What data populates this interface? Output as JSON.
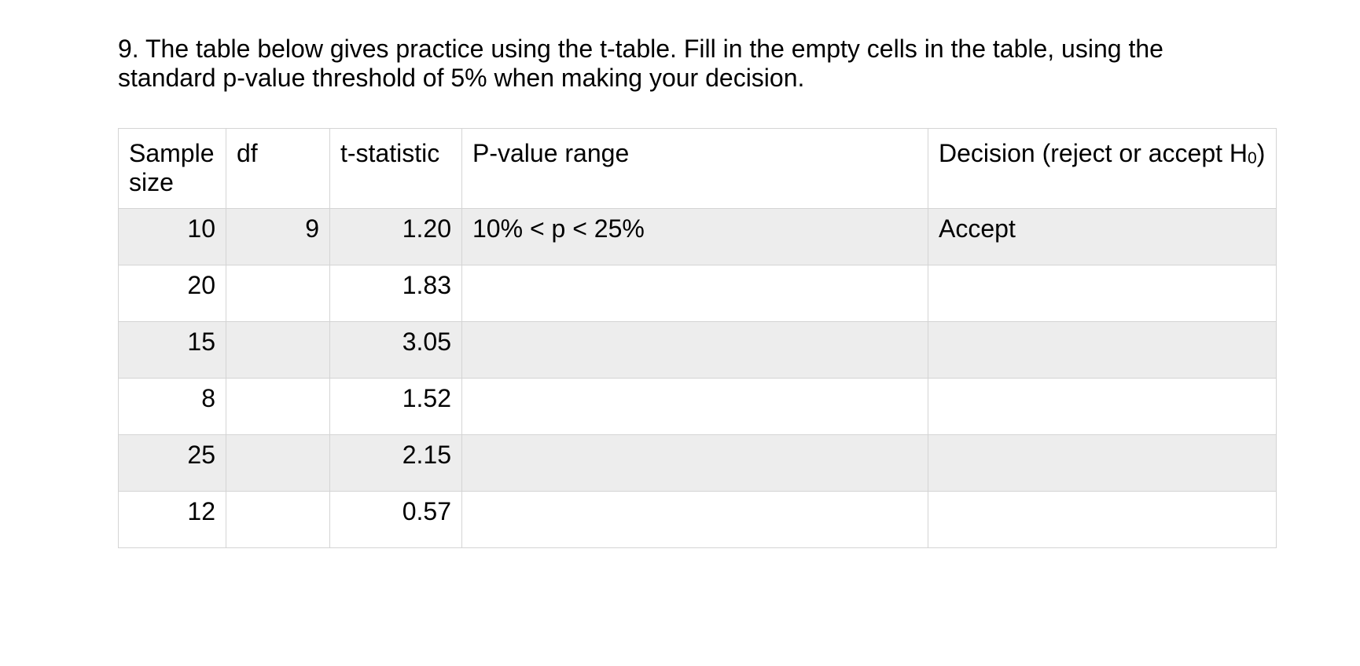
{
  "question": {
    "lines": [
      "9. The table below gives practice using the t-table. Fill in the empty cells in the table, using the",
      "standard p-value threshold of 5% when making your decision."
    ]
  },
  "table": {
    "headers": {
      "sample_size": "Sample size",
      "df": "df",
      "t_statistic": "t-statistic",
      "p_value_range": "P-value range",
      "decision_prefix": "Decision (reject or accept H",
      "decision_sub": "0",
      "decision_suffix": ")"
    },
    "rows": [
      {
        "sample_size": "10",
        "df": "9",
        "t_statistic": "1.20",
        "p_value_range": "10% < p < 25%",
        "decision": "Accept"
      },
      {
        "sample_size": "20",
        "df": "",
        "t_statistic": "1.83",
        "p_value_range": "",
        "decision": ""
      },
      {
        "sample_size": "15",
        "df": "",
        "t_statistic": "3.05",
        "p_value_range": "",
        "decision": ""
      },
      {
        "sample_size": "8",
        "df": "",
        "t_statistic": "1.52",
        "p_value_range": "",
        "decision": ""
      },
      {
        "sample_size": "25",
        "df": "",
        "t_statistic": "2.15",
        "p_value_range": "",
        "decision": ""
      },
      {
        "sample_size": "12",
        "df": "",
        "t_statistic": "0.57",
        "p_value_range": "",
        "decision": ""
      }
    ]
  },
  "colors": {
    "background": "#ffffff",
    "text": "#000000",
    "row_shade": "#ededed",
    "table_border": "#d4d4d4"
  }
}
